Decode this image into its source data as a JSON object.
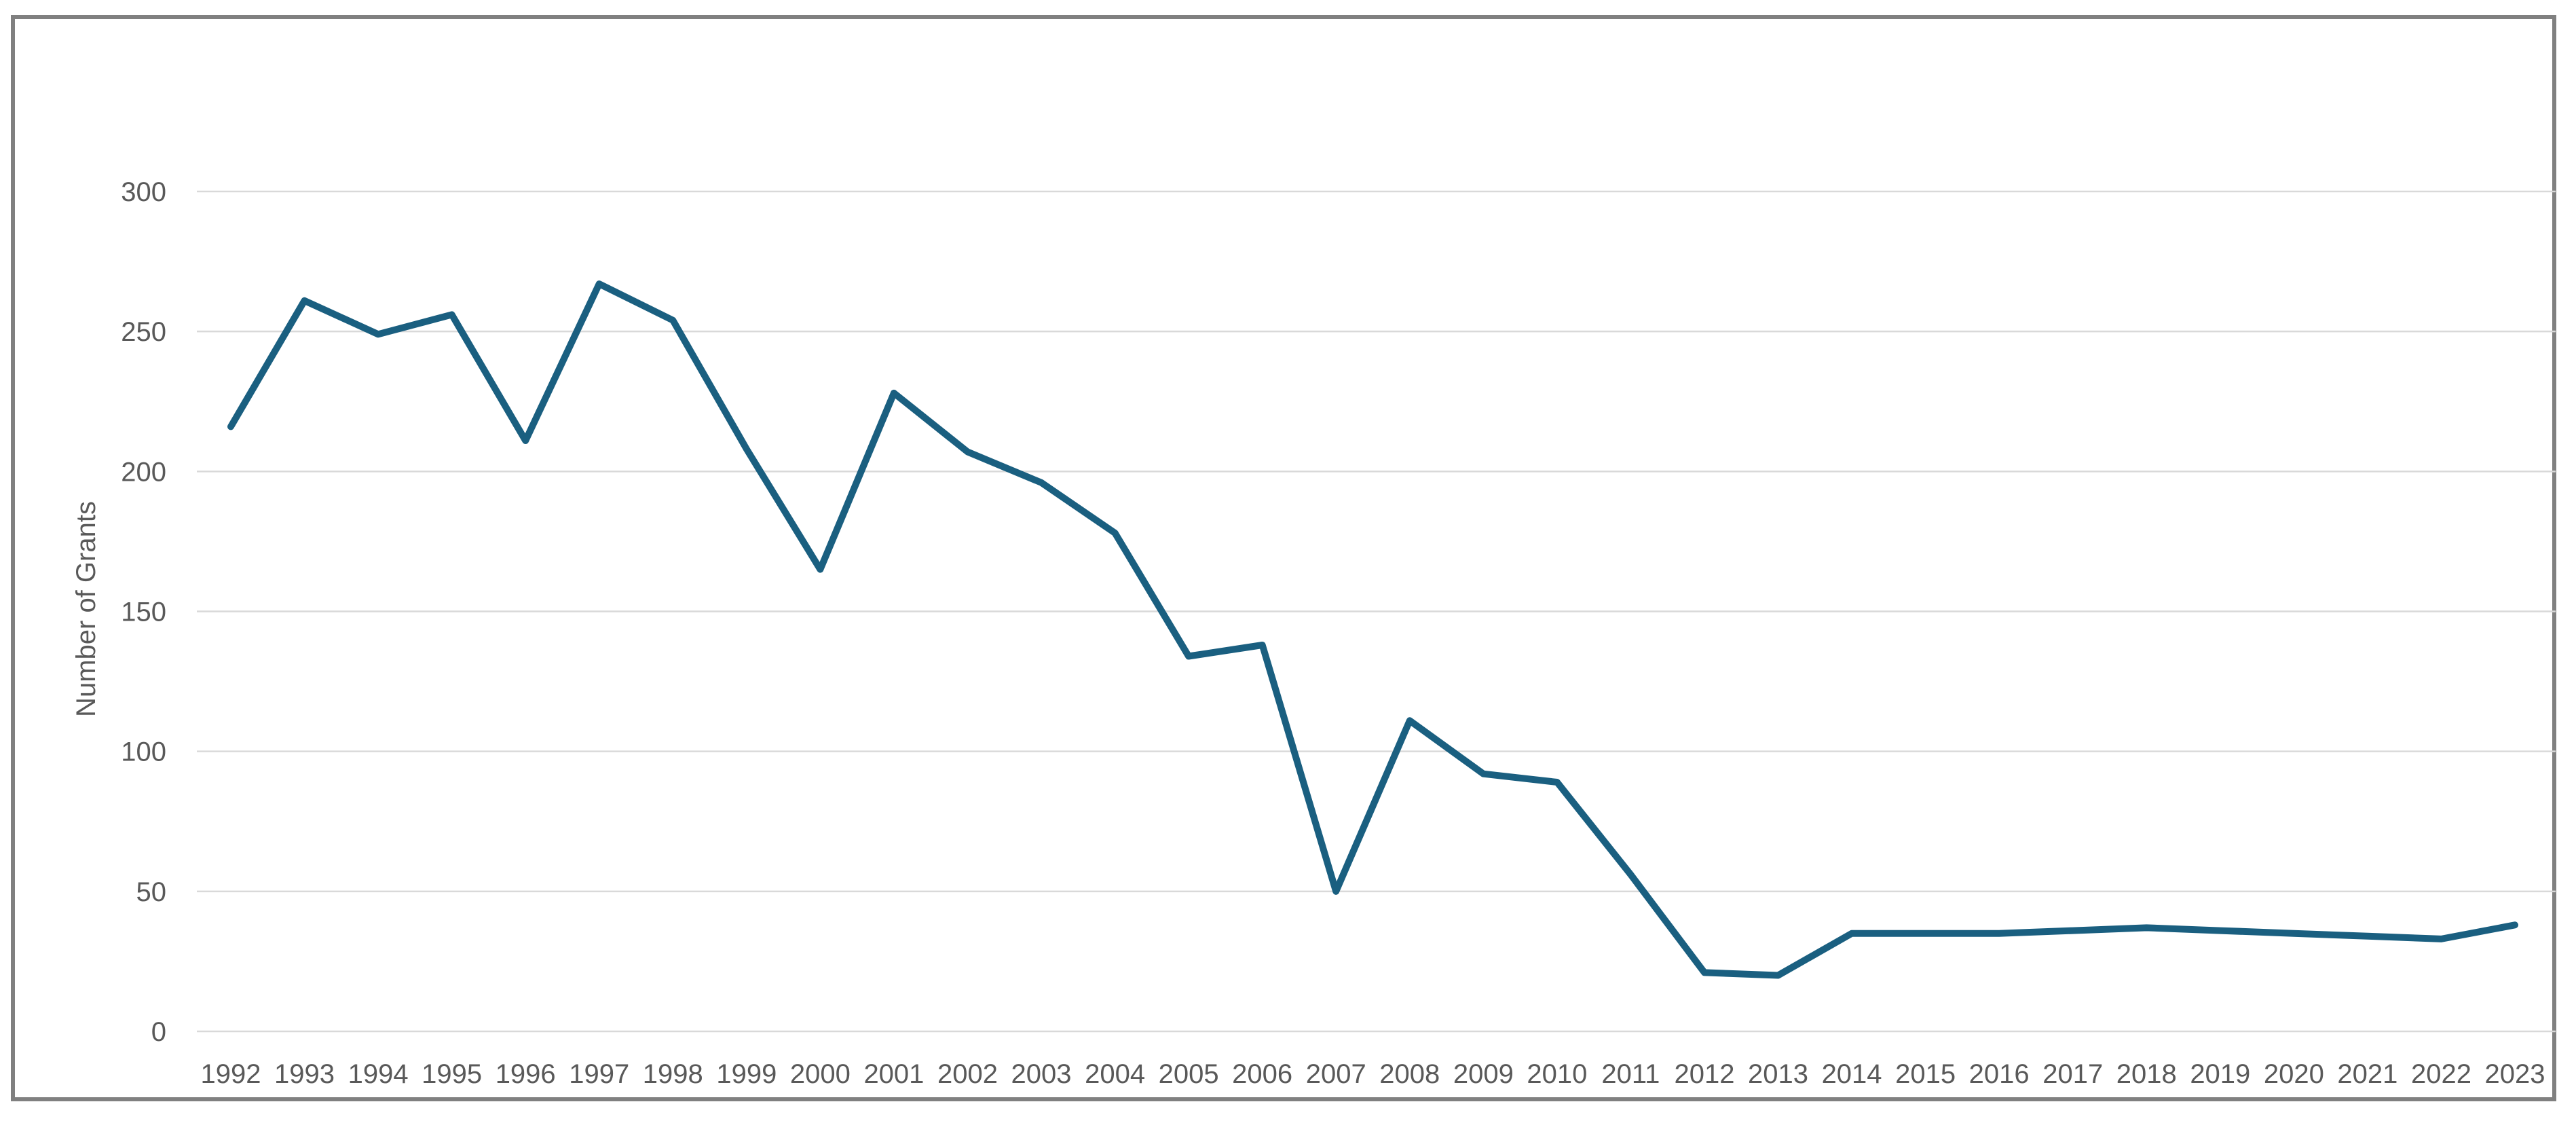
{
  "chart_data": {
    "type": "line",
    "title": "",
    "xlabel": "",
    "ylabel": "Number of Grants",
    "ylim": [
      0,
      300
    ],
    "yticks": [
      0,
      50,
      100,
      150,
      200,
      250,
      300
    ],
    "grid": "horizontal",
    "legend": "none",
    "categories": [
      "1992",
      "1993",
      "1994",
      "1995",
      "1996",
      "1997",
      "1998",
      "1999",
      "2000",
      "2001",
      "2002",
      "2003",
      "2004",
      "2005",
      "2006",
      "2007",
      "2008",
      "2009",
      "2010",
      "2011",
      "2012",
      "2013",
      "2014",
      "2015",
      "2016",
      "2017",
      "2018",
      "2019",
      "2020",
      "2021",
      "2022",
      "2023"
    ],
    "series": [
      {
        "color": "#1a5f80",
        "values": [
          216,
          261,
          249,
          256,
          211,
          267,
          254,
          208,
          165,
          228,
          207,
          196,
          178,
          134,
          138,
          50,
          111,
          92,
          89,
          56,
          21,
          20,
          35,
          35,
          35,
          36,
          37,
          36,
          35,
          34,
          33,
          38
        ]
      }
    ]
  }
}
